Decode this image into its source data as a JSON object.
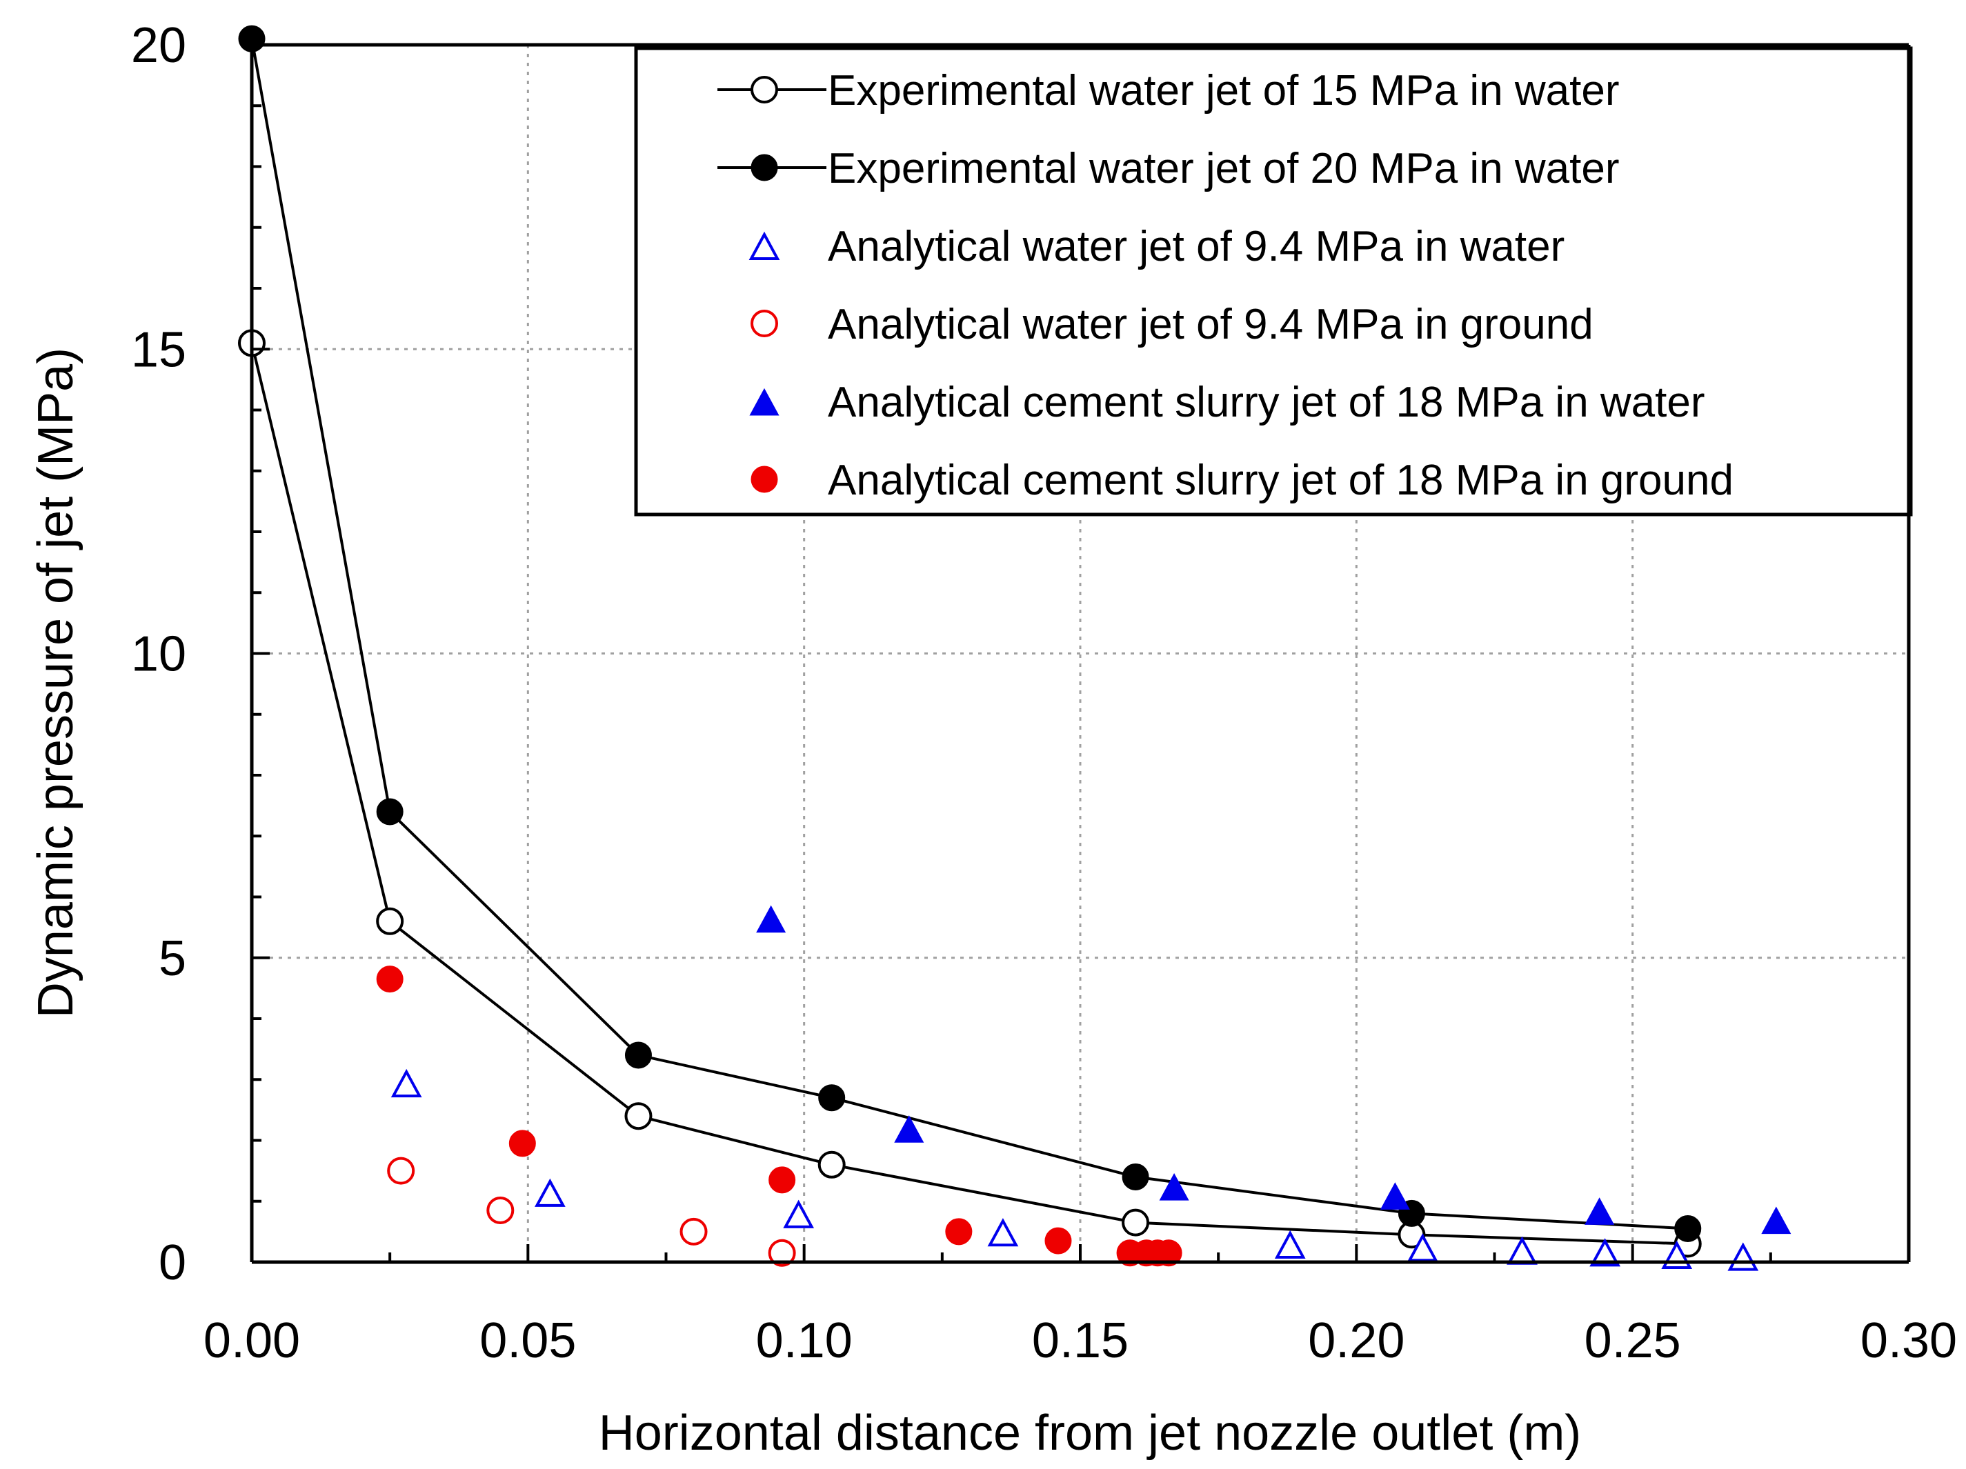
{
  "chart_data": {
    "type": "scatter",
    "title": "",
    "xlabel": "Horizontal distance from jet nozzle outlet (m)",
    "ylabel": "Dynamic pressure of jet (MPa)",
    "xlim": [
      0,
      0.3
    ],
    "ylim": [
      0,
      20
    ],
    "grid": true,
    "legend_position": "top-right",
    "x_ticks": [
      "0.00",
      "0.05",
      "0.10",
      "0.15",
      "0.20",
      "0.25",
      "0.30"
    ],
    "x_tick_values": [
      0,
      0.05,
      0.1,
      0.15,
      0.2,
      0.25,
      0.3
    ],
    "y_ticks": [
      "0",
      "5",
      "10",
      "15",
      "20"
    ],
    "y_tick_values": [
      0,
      5,
      10,
      15,
      20
    ],
    "series": [
      {
        "name": "Experimental water jet of 15 MPa in water",
        "marker": "circle-open",
        "line": true,
        "color": "#000000",
        "x": [
          0,
          0.025,
          0.07,
          0.105,
          0.16,
          0.21,
          0.26
        ],
        "y": [
          15.1,
          5.6,
          2.4,
          1.6,
          0.65,
          0.45,
          0.3
        ]
      },
      {
        "name": "Experimental water jet of 20 MPa in water",
        "marker": "circle-filled",
        "line": true,
        "color": "#000000",
        "x": [
          0,
          0.025,
          0.07,
          0.105,
          0.16,
          0.21,
          0.26
        ],
        "y": [
          20.1,
          7.4,
          3.4,
          2.7,
          1.4,
          0.8,
          0.55
        ]
      },
      {
        "name": "Analytical water jet of 9.4 MPa in water",
        "marker": "triangle-open",
        "line": false,
        "color": "#0000ee",
        "x": [
          0.028,
          0.054,
          0.099,
          0.136,
          0.188,
          0.212,
          0.23,
          0.245,
          0.258,
          0.27
        ],
        "y": [
          2.9,
          1.1,
          0.75,
          0.45,
          0.25,
          0.2,
          0.15,
          0.12,
          0.08,
          0.05
        ]
      },
      {
        "name": "Analytical water jet of 9.4 MPa in ground",
        "marker": "circle-open",
        "line": false,
        "color": "#ee0000",
        "x": [
          0.027,
          0.045,
          0.08,
          0.096
        ],
        "y": [
          1.5,
          0.85,
          0.5,
          0.15
        ]
      },
      {
        "name": "Analytical cement slurry jet of 18 MPa in water",
        "marker": "triangle-filled",
        "line": false,
        "color": "#0000ee",
        "x": [
          0.094,
          0.119,
          0.167,
          0.207,
          0.244,
          0.276
        ],
        "y": [
          5.6,
          2.15,
          1.2,
          1.05,
          0.8,
          0.65
        ]
      },
      {
        "name": "Analytical cement slurry jet of 18 MPa in ground",
        "marker": "circle-filled",
        "line": false,
        "color": "#ee0000",
        "x": [
          0.025,
          0.049,
          0.096,
          0.128,
          0.146,
          0.159,
          0.162,
          0.164,
          0.166
        ],
        "y": [
          4.65,
          1.95,
          1.35,
          0.5,
          0.35,
          0.15,
          0.15,
          0.15,
          0.15
        ]
      }
    ]
  }
}
